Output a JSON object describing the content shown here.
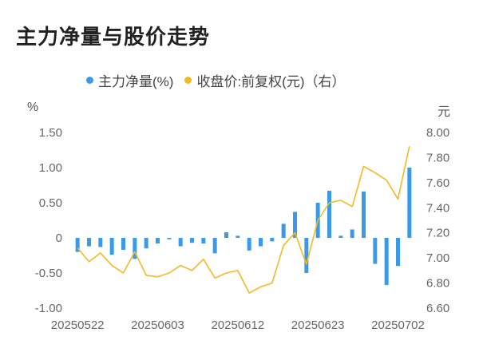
{
  "title": "主力净量与股价走势",
  "legend": {
    "net_label": "主力净量(%)",
    "price_label": "收盘价:前复权(元)（右）"
  },
  "colors": {
    "bar": "#3b9ae8",
    "line": "#f5b921"
  },
  "chart_data": {
    "type": "bar+line",
    "title": "主力净量与股价走势",
    "left_unit": "%",
    "right_unit": "元",
    "left_ylim": [
      -1.0,
      1.5
    ],
    "right_ylim": [
      6.6,
      8.0
    ],
    "left_ticks": [
      "1.50",
      "1.00",
      "0.50",
      "0",
      "-0.50",
      "-1.00"
    ],
    "right_ticks": [
      "8.00",
      "7.80",
      "7.60",
      "7.40",
      "7.20",
      "7.00",
      "6.80",
      "6.60"
    ],
    "x_tick_labels": [
      {
        "label": "20250522",
        "index": 0
      },
      {
        "label": "20250603",
        "index": 7
      },
      {
        "label": "20250612",
        "index": 14
      },
      {
        "label": "20250623",
        "index": 21
      },
      {
        "label": "20250702",
        "index": 28
      }
    ],
    "series": [
      {
        "name": "主力净量(%)",
        "kind": "bar",
        "axis": "left",
        "values": [
          -0.2,
          -0.12,
          -0.13,
          -0.24,
          -0.17,
          -0.3,
          -0.15,
          -0.08,
          -0.02,
          -0.12,
          -0.07,
          -0.08,
          -0.22,
          0.08,
          0.03,
          -0.18,
          -0.12,
          -0.05,
          0.2,
          0.37,
          -0.5,
          0.5,
          0.67,
          0.03,
          0.12,
          0.66,
          -0.37,
          -0.67,
          -0.4,
          1.0
        ]
      },
      {
        "name": "收盘价:前复权(元)（右）",
        "kind": "line",
        "axis": "right",
        "values": [
          7.08,
          6.97,
          7.04,
          6.94,
          6.88,
          7.05,
          6.86,
          6.85,
          6.88,
          6.94,
          6.9,
          6.99,
          6.84,
          6.88,
          6.9,
          6.72,
          6.77,
          6.8,
          7.1,
          7.2,
          6.95,
          7.3,
          7.44,
          7.46,
          7.41,
          7.73,
          7.68,
          7.62,
          7.47,
          7.89
        ]
      }
    ]
  }
}
